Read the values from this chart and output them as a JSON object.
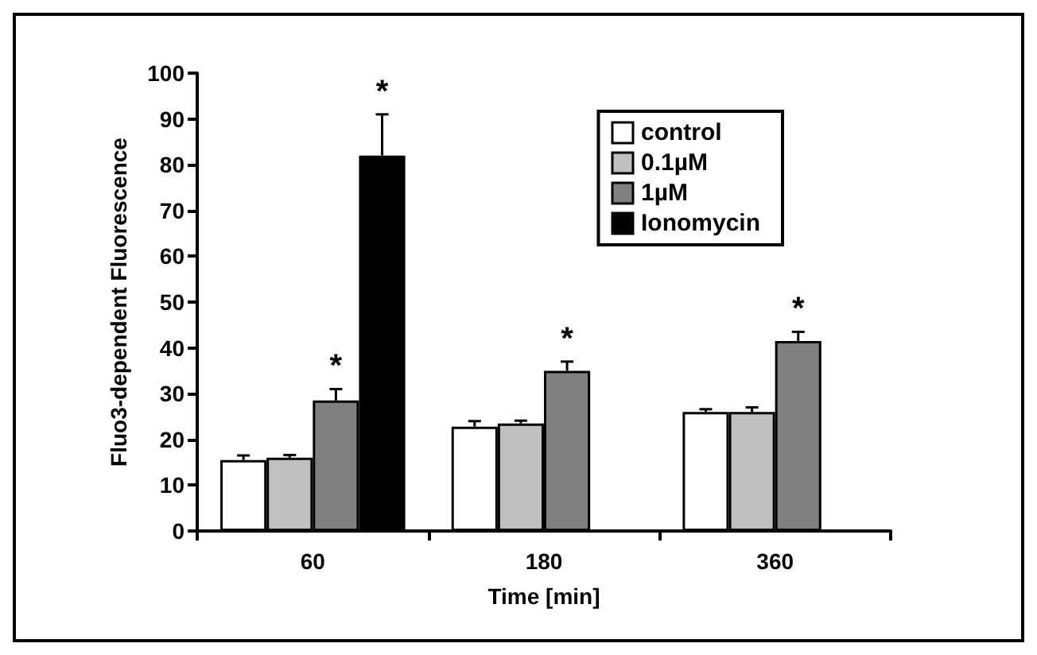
{
  "chart_data": {
    "type": "bar",
    "xlabel": "Time [min]",
    "ylabel": "Fluo3-dependent Fluorescence",
    "categories": [
      "60",
      "180",
      "360"
    ],
    "series": [
      {
        "name": "control",
        "color": "#ffffff",
        "values": [
          15.5,
          22.8,
          26
        ],
        "errors": [
          [
            15.5,
            16.5
          ],
          [
            22.8,
            24
          ],
          [
            26,
            26.6
          ]
        ]
      },
      {
        "name": "0.1µM",
        "color": "#c0c0c0",
        "values": [
          16,
          23.5,
          26
        ],
        "errors": [
          [
            16,
            16.6
          ],
          [
            23.5,
            24.1
          ],
          [
            26,
            27
          ]
        ]
      },
      {
        "name": "1µM",
        "color": "#808080",
        "values": [
          28.5,
          35,
          41.5
        ],
        "errors": [
          [
            28.5,
            31
          ],
          [
            35,
            37
          ],
          [
            41.5,
            43.5
          ]
        ],
        "value_labels": [
          "*",
          "*",
          "*"
        ]
      },
      {
        "name": "Ionomycin",
        "color": "#000000",
        "values": [
          82,
          null,
          null
        ],
        "errors": [
          [
            82,
            91
          ],
          null,
          null
        ],
        "value_labels": [
          "*",
          null,
          null
        ]
      }
    ],
    "ylim": [
      0,
      100
    ],
    "yticks": [
      0,
      10,
      20,
      30,
      40,
      50,
      60,
      70,
      80,
      90,
      100
    ],
    "grid": false,
    "legend": "top right"
  }
}
